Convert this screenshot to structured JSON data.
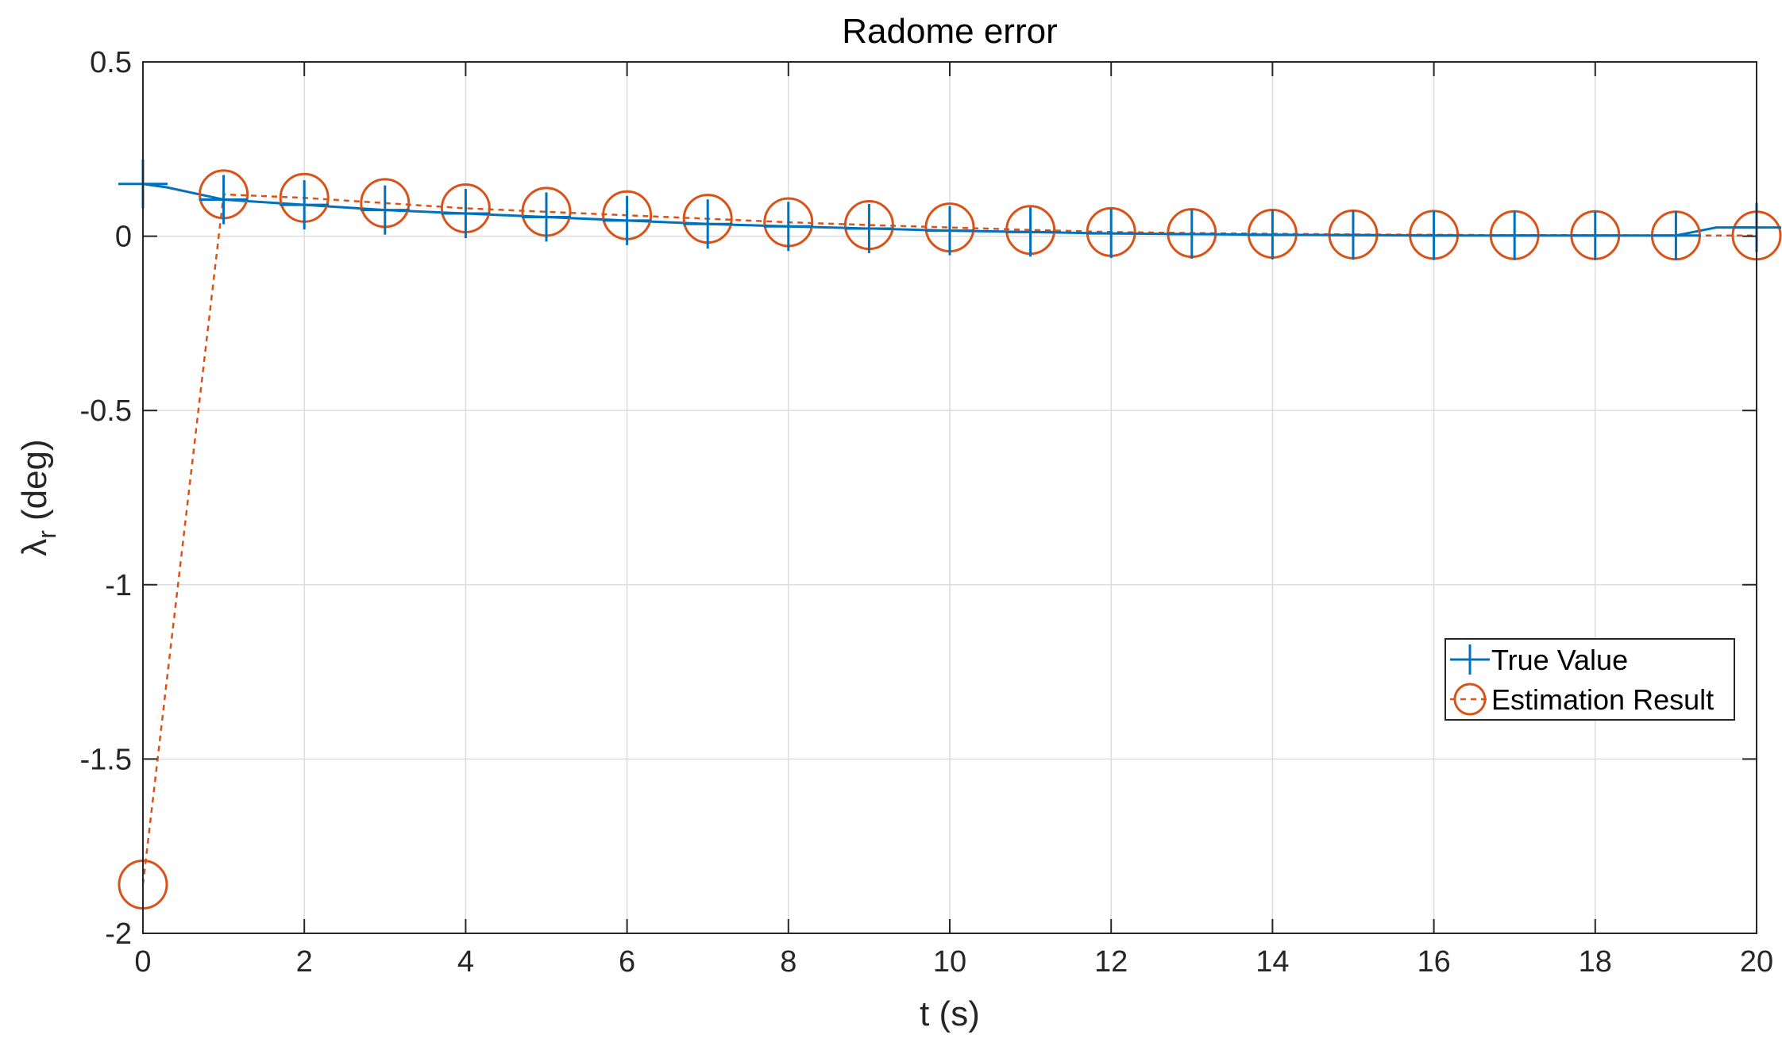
{
  "chart_data": {
    "type": "line",
    "title": "Radome error",
    "xlabel": "t (s)",
    "ylabel_main": "λ",
    "ylabel_sub": "r",
    "ylabel_unit": "(deg)",
    "xlim": [
      0,
      20
    ],
    "ylim": [
      -2,
      0.5
    ],
    "xticks": [
      0,
      2,
      4,
      6,
      8,
      10,
      12,
      14,
      16,
      18,
      20
    ],
    "xtick_labels": [
      "0",
      "2",
      "4",
      "6",
      "8",
      "10",
      "12",
      "14",
      "16",
      "18",
      "20"
    ],
    "yticks": [
      -2,
      -1.5,
      -1,
      -0.5,
      0,
      0.5
    ],
    "ytick_labels": [
      "-2",
      "-1.5",
      "-1",
      "-0.5",
      "0",
      "0.5"
    ],
    "grid": true,
    "legend_position": "center-right",
    "series": [
      {
        "name": "True Value",
        "color": "#0072BD",
        "line_style": "solid",
        "marker": "plus",
        "x": [
          0,
          0.3,
          1,
          2,
          3,
          4,
          5,
          6,
          7,
          8,
          9,
          10,
          11,
          12,
          13,
          14,
          15,
          16,
          17,
          18,
          19,
          19.5,
          20
        ],
        "y": [
          0.15,
          0.14,
          0.105,
          0.09,
          0.075,
          0.065,
          0.055,
          0.045,
          0.035,
          0.028,
          0.022,
          0.016,
          0.012,
          0.008,
          0.006,
          0.004,
          0.003,
          0.002,
          0.002,
          0.002,
          0.002,
          0.025,
          0.025
        ]
      },
      {
        "name": "Estimation Result",
        "color": "#D95319",
        "line_style": "dashed",
        "marker": "circle",
        "x": [
          0,
          1,
          2,
          3,
          4,
          5,
          6,
          7,
          8,
          9,
          10,
          11,
          12,
          13,
          14,
          15,
          16,
          17,
          18,
          19,
          20
        ],
        "y": [
          -1.86,
          0.12,
          0.11,
          0.095,
          0.08,
          0.07,
          0.06,
          0.05,
          0.04,
          0.032,
          0.025,
          0.018,
          0.012,
          0.009,
          0.007,
          0.005,
          0.004,
          0.003,
          0.003,
          0.002,
          0.002
        ]
      }
    ]
  }
}
